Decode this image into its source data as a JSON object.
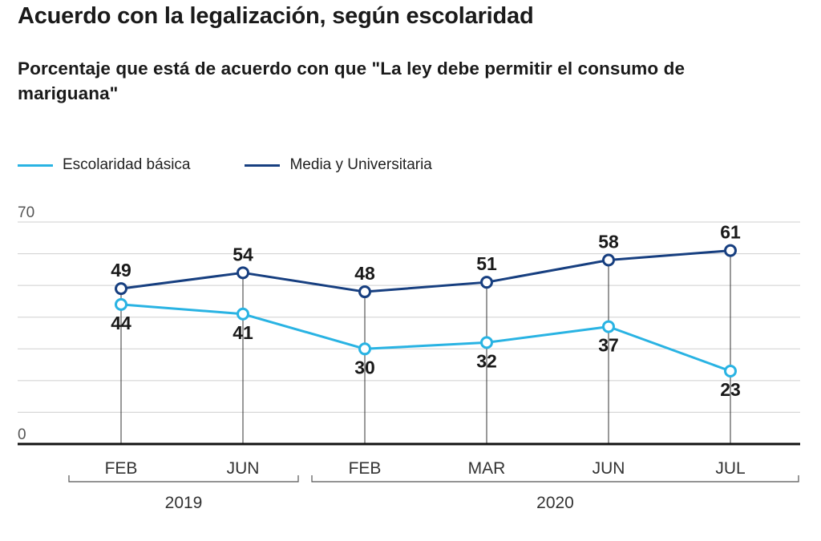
{
  "title": "Acuerdo con la legalización, según escolaridad",
  "subtitle": "Porcentaje que está de acuerdo con que \"La ley debe permitir el consumo de mariguana\"",
  "colors": {
    "basic": "#29b3e3",
    "media": "#173f80",
    "axis": "#111111",
    "grid": "#cfcfcf"
  },
  "chart_data": {
    "type": "line",
    "x": [
      "FEB",
      "JUN",
      "FEB",
      "MAR",
      "JUN",
      "JUL"
    ],
    "year_groups": [
      {
        "label": "2019",
        "start": 0,
        "end": 1
      },
      {
        "label": "2020",
        "start": 2,
        "end": 5
      }
    ],
    "series": [
      {
        "name": "Escolaridad básica",
        "values": [
          44,
          41,
          30,
          32,
          37,
          23
        ]
      },
      {
        "name": "Media y Universitaria",
        "values": [
          49,
          54,
          48,
          51,
          58,
          61
        ]
      }
    ],
    "y_tick_labels": [
      "0",
      "70"
    ],
    "ylim": [
      0,
      70
    ],
    "grid_step": 10,
    "grid": true,
    "legend_position": "top-left"
  }
}
